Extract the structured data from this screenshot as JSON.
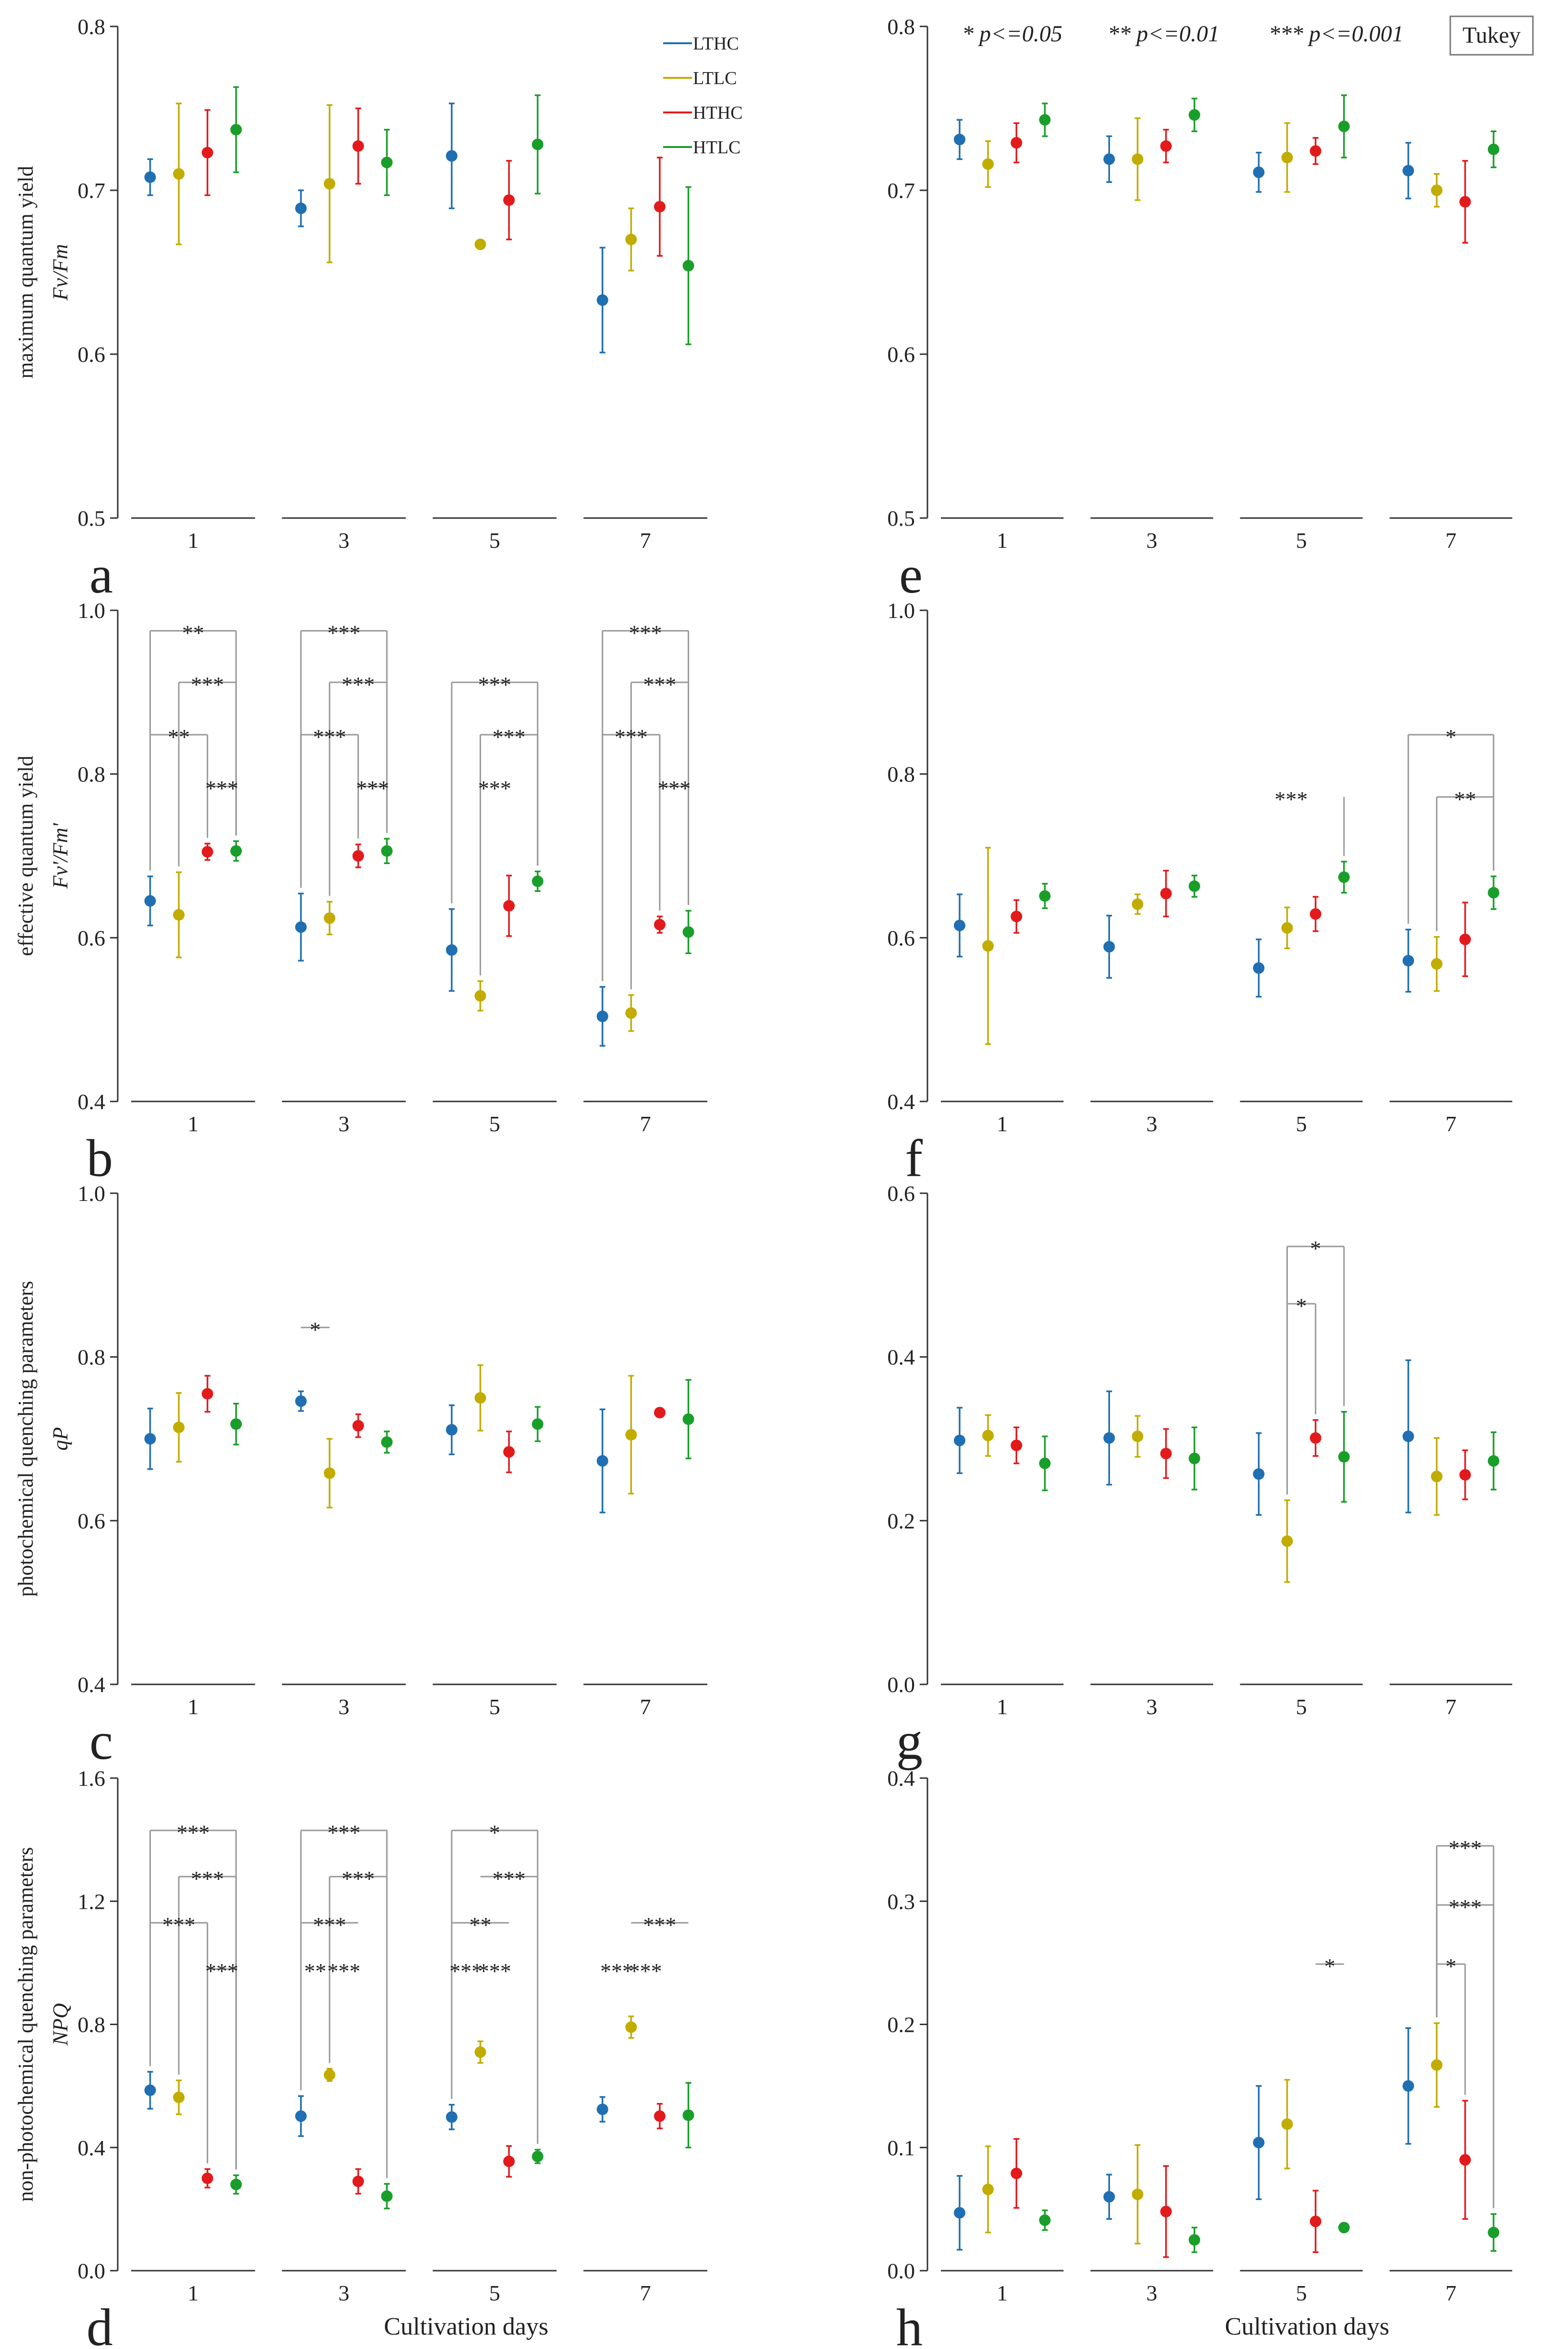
{
  "figure": {
    "x_axis_title": "Cultivation days",
    "significance_note": {
      "p1": "* p<=0.05",
      "p2": "** p<=0.01",
      "p3": "*** p<=0.001",
      "test": "Tukey"
    }
  },
  "colors": {
    "LTHC": "#1f6fb2",
    "LTLC": "#c2ac00",
    "HTHC": "#e31a1c",
    "HTLC": "#1a9e2a"
  },
  "chart_data": [
    {
      "id": "a",
      "type": "scatter",
      "letter": "a",
      "ylabel_line1": "maximum quantum yield",
      "ylabel_line2": "Fv/Fm",
      "ylim": [
        0.5,
        0.8
      ],
      "yticks": [
        "0.5",
        "0.6",
        "0.7",
        "0.8"
      ],
      "categories": [
        "1",
        "3",
        "5",
        "7"
      ],
      "legend": [
        "LTHC",
        "LTLC",
        "HTHC",
        "HTLC"
      ],
      "series": [
        {
          "name": "LTHC",
          "values": [
            0.708,
            0.689,
            0.721,
            0.633
          ],
          "err": [
            0.011,
            0.011,
            0.032,
            0.032
          ]
        },
        {
          "name": "LTLC",
          "values": [
            0.71,
            0.704,
            0.667,
            0.67
          ],
          "err": [
            0.043,
            0.048,
            0.0,
            0.019
          ]
        },
        {
          "name": "HTHC",
          "values": [
            0.723,
            0.727,
            0.694,
            0.69
          ],
          "err": [
            0.026,
            0.023,
            0.024,
            0.03
          ]
        },
        {
          "name": "HTLC",
          "values": [
            0.737,
            0.717,
            0.728,
            0.654
          ],
          "err": [
            0.026,
            0.02,
            0.03,
            0.048
          ]
        }
      ],
      "brackets": []
    },
    {
      "id": "b",
      "type": "scatter",
      "letter": "b",
      "ylabel_line1": "effective quantum yield",
      "ylabel_line2": "Fv'/Fm'",
      "ylim": [
        0.4,
        1.0
      ],
      "yticks": [
        "0.4",
        "0.6",
        "0.8",
        "1.0"
      ],
      "categories": [
        "1",
        "3",
        "5",
        "7"
      ],
      "series": [
        {
          "name": "LTHC",
          "values": [
            0.645,
            0.613,
            0.585,
            0.504
          ],
          "err": [
            0.03,
            0.041,
            0.05,
            0.036
          ]
        },
        {
          "name": "LTLC",
          "values": [
            0.628,
            0.624,
            0.529,
            0.508
          ],
          "err": [
            0.052,
            0.02,
            0.018,
            0.022
          ]
        },
        {
          "name": "HTHC",
          "values": [
            0.705,
            0.7,
            0.639,
            0.616
          ],
          "err": [
            0.01,
            0.014,
            0.037,
            0.01
          ]
        },
        {
          "name": "HTLC",
          "values": [
            0.706,
            0.706,
            0.669,
            0.607
          ],
          "err": [
            0.012,
            0.015,
            0.012,
            0.026
          ]
        }
      ],
      "brackets": [
        {
          "g": 0,
          "a": 0,
          "b": 3,
          "y": 0.975,
          "label": "**"
        },
        {
          "g": 0,
          "a": 1,
          "b": 3,
          "y": 0.912,
          "label": "***"
        },
        {
          "g": 0,
          "a": 0,
          "b": 2,
          "y": 0.848,
          "label": "**"
        },
        {
          "g": 0,
          "a": 2,
          "b": 3,
          "y": 0.785,
          "label": "***",
          "form": "drop"
        },
        {
          "g": 1,
          "a": 0,
          "b": 3,
          "y": 0.975,
          "label": "***"
        },
        {
          "g": 1,
          "a": 1,
          "b": 3,
          "y": 0.912,
          "label": "***"
        },
        {
          "g": 1,
          "a": 0,
          "b": 2,
          "y": 0.848,
          "label": "***"
        },
        {
          "g": 1,
          "a": 2,
          "b": 3,
          "y": 0.785,
          "label": "***",
          "form": "drop"
        },
        {
          "g": 2,
          "a": 0,
          "b": 3,
          "y": 0.912,
          "label": "***"
        },
        {
          "g": 2,
          "a": 1,
          "b": 3,
          "y": 0.848,
          "label": "***"
        },
        {
          "g": 2,
          "a": 1,
          "b": 2,
          "y": 0.785,
          "label": "***",
          "form": "none"
        },
        {
          "g": 3,
          "a": 0,
          "b": 3,
          "y": 0.975,
          "label": "***"
        },
        {
          "g": 3,
          "a": 1,
          "b": 3,
          "y": 0.912,
          "label": "***"
        },
        {
          "g": 3,
          "a": 0,
          "b": 2,
          "y": 0.848,
          "label": "***"
        },
        {
          "g": 3,
          "a": 2,
          "b": 3,
          "y": 0.785,
          "label": "***",
          "form": "drop"
        }
      ]
    },
    {
      "id": "c",
      "type": "scatter",
      "letter": "c",
      "ylabel_line1": "photochemical quenching parameters",
      "ylabel_line2": "qP",
      "ylim": [
        0.4,
        1.0
      ],
      "yticks": [
        "0.4",
        "0.6",
        "0.8",
        "1.0"
      ],
      "categories": [
        "1",
        "3",
        "5",
        "7"
      ],
      "series": [
        {
          "name": "LTHC",
          "values": [
            0.7,
            0.746,
            0.711,
            0.673
          ],
          "err": [
            0.037,
            0.012,
            0.03,
            0.063
          ]
        },
        {
          "name": "LTLC",
          "values": [
            0.714,
            0.658,
            0.75,
            0.705
          ],
          "err": [
            0.042,
            0.042,
            0.04,
            0.072
          ]
        },
        {
          "name": "HTHC",
          "values": [
            0.755,
            0.716,
            0.684,
            0.732
          ],
          "err": [
            0.022,
            0.014,
            0.025,
            0.0
          ]
        },
        {
          "name": "HTLC",
          "values": [
            0.718,
            0.696,
            0.718,
            0.724
          ],
          "err": [
            0.025,
            0.013,
            0.021,
            0.048
          ]
        }
      ],
      "brackets": [
        {
          "g": 1,
          "a": 0,
          "b": 1,
          "y": 0.836,
          "label": "*",
          "form": "flat"
        }
      ]
    },
    {
      "id": "d",
      "type": "scatter",
      "letter": "d",
      "ylabel_line1": "non-photochemical quenching parameters",
      "ylabel_line2": "NPQ",
      "ylim": [
        0.0,
        1.6
      ],
      "yticks": [
        "0.0",
        "0.4",
        "0.8",
        "1.2",
        "1.6"
      ],
      "categories": [
        "1",
        "3",
        "5",
        "7"
      ],
      "series": [
        {
          "name": "LTHC",
          "values": [
            0.586,
            0.502,
            0.499,
            0.524
          ],
          "err": [
            0.06,
            0.065,
            0.04,
            0.04
          ]
        },
        {
          "name": "LTLC",
          "values": [
            0.563,
            0.636,
            0.71,
            0.791
          ],
          "err": [
            0.055,
            0.02,
            0.035,
            0.035
          ]
        },
        {
          "name": "HTHC",
          "values": [
            0.3,
            0.29,
            0.355,
            0.502
          ],
          "err": [
            0.03,
            0.04,
            0.05,
            0.04
          ]
        },
        {
          "name": "HTLC",
          "values": [
            0.28,
            0.242,
            0.371,
            0.505
          ],
          "err": [
            0.03,
            0.04,
            0.022,
            0.105
          ]
        }
      ],
      "brackets": [
        {
          "g": 0,
          "a": 0,
          "b": 3,
          "y": 1.43,
          "label": "***"
        },
        {
          "g": 0,
          "a": 1,
          "b": 3,
          "y": 1.28,
          "label": "***"
        },
        {
          "g": 0,
          "a": 0,
          "b": 2,
          "y": 1.13,
          "label": "***"
        },
        {
          "g": 0,
          "a": 2,
          "b": 3,
          "y": 0.98,
          "label": "***",
          "form": "drop"
        },
        {
          "g": 1,
          "a": 0,
          "b": 3,
          "y": 1.43,
          "label": "***"
        },
        {
          "g": 1,
          "a": 1,
          "b": 3,
          "y": 1.28,
          "label": "***"
        },
        {
          "g": 1,
          "a": 0,
          "b": 2,
          "y": 1.13,
          "label": "***",
          "form": "flat"
        },
        {
          "g": 1,
          "a": 0,
          "b": 1,
          "y": 0.98,
          "label": "**",
          "form": "none"
        },
        {
          "g": 1,
          "a": 1,
          "b": 2,
          "y": 0.98,
          "label": "***",
          "form": "none"
        },
        {
          "g": 2,
          "a": 0,
          "b": 3,
          "y": 1.43,
          "label": "*"
        },
        {
          "g": 2,
          "a": 1,
          "b": 3,
          "y": 1.28,
          "label": "***",
          "form": "flat"
        },
        {
          "g": 2,
          "a": 0,
          "b": 2,
          "y": 1.13,
          "label": "**",
          "form": "flat"
        },
        {
          "g": 2,
          "a": 0,
          "b": 1,
          "y": 0.98,
          "label": "***",
          "form": "none"
        },
        {
          "g": 2,
          "a": 1,
          "b": 2,
          "y": 0.98,
          "label": "***",
          "form": "none"
        },
        {
          "g": 3,
          "a": 1,
          "b": 3,
          "y": 1.13,
          "label": "***",
          "form": "flat"
        },
        {
          "g": 3,
          "a": 0,
          "b": 1,
          "y": 0.98,
          "label": "***",
          "form": "none"
        },
        {
          "g": 3,
          "a": 1,
          "b": 2,
          "y": 0.98,
          "label": "***",
          "form": "none"
        }
      ]
    },
    {
      "id": "e",
      "type": "scatter",
      "letter": "e",
      "ylabel_line1": "",
      "ylabel_line2": "",
      "ylim": [
        0.5,
        0.8
      ],
      "yticks": [
        "0.5",
        "0.6",
        "0.7",
        "0.8"
      ],
      "categories": [
        "1",
        "3",
        "5",
        "7"
      ],
      "series": [
        {
          "name": "LTHC",
          "values": [
            0.731,
            0.719,
            0.711,
            0.712
          ],
          "err": [
            0.012,
            0.014,
            0.012,
            0.017
          ]
        },
        {
          "name": "LTLC",
          "values": [
            0.716,
            0.719,
            0.72,
            0.7
          ],
          "err": [
            0.014,
            0.025,
            0.021,
            0.01
          ]
        },
        {
          "name": "HTHC",
          "values": [
            0.729,
            0.727,
            0.724,
            0.693
          ],
          "err": [
            0.012,
            0.01,
            0.008,
            0.025
          ]
        },
        {
          "name": "HTLC",
          "values": [
            0.743,
            0.746,
            0.739,
            0.725
          ],
          "err": [
            0.01,
            0.01,
            0.019,
            0.011
          ]
        }
      ],
      "brackets": []
    },
    {
      "id": "f",
      "type": "scatter",
      "letter": "f",
      "ylabel_line1": "",
      "ylabel_line2": "",
      "ylim": [
        0.4,
        1.0
      ],
      "yticks": [
        "0.4",
        "0.6",
        "0.8",
        "1.0"
      ],
      "categories": [
        "1",
        "3",
        "5",
        "7"
      ],
      "series": [
        {
          "name": "LTHC",
          "values": [
            0.615,
            0.589,
            0.563,
            0.572
          ],
          "err": [
            0.038,
            0.038,
            0.035,
            0.038
          ]
        },
        {
          "name": "LTLC",
          "values": [
            0.59,
            0.641,
            0.612,
            0.568
          ],
          "err": [
            0.12,
            0.012,
            0.025,
            0.033
          ]
        },
        {
          "name": "HTHC",
          "values": [
            0.626,
            0.654,
            0.629,
            0.598
          ],
          "err": [
            0.02,
            0.028,
            0.021,
            0.045
          ]
        },
        {
          "name": "HTLC",
          "values": [
            0.651,
            0.663,
            0.674,
            0.655
          ],
          "err": [
            0.015,
            0.013,
            0.019,
            0.02
          ]
        }
      ],
      "brackets": [
        {
          "g": 2,
          "a": 1,
          "b": 3,
          "y": 0.772,
          "label": "***",
          "form": "rightonly"
        },
        {
          "g": 3,
          "a": 0,
          "b": 3,
          "y": 0.848,
          "label": "*"
        },
        {
          "g": 3,
          "a": 1,
          "b": 3,
          "y": 0.772,
          "label": "**"
        }
      ]
    },
    {
      "id": "g",
      "type": "scatter",
      "letter": "g",
      "ylabel_line1": "",
      "ylabel_line2": "",
      "ylim": [
        0.0,
        0.6
      ],
      "yticks": [
        "0.0",
        "0.2",
        "0.4",
        "0.6"
      ],
      "categories": [
        "1",
        "3",
        "5",
        "7"
      ],
      "series": [
        {
          "name": "LTHC",
          "values": [
            0.298,
            0.301,
            0.257,
            0.303
          ],
          "err": [
            0.04,
            0.057,
            0.05,
            0.093
          ]
        },
        {
          "name": "LTLC",
          "values": [
            0.304,
            0.303,
            0.175,
            0.254
          ],
          "err": [
            0.025,
            0.025,
            0.05,
            0.047
          ]
        },
        {
          "name": "HTHC",
          "values": [
            0.292,
            0.282,
            0.301,
            0.256
          ],
          "err": [
            0.022,
            0.03,
            0.022,
            0.03
          ]
        },
        {
          "name": "HTLC",
          "values": [
            0.27,
            0.276,
            0.278,
            0.273
          ],
          "err": [
            0.033,
            0.038,
            0.055,
            0.035
          ]
        }
      ],
      "brackets": [
        {
          "g": 2,
          "a": 1,
          "b": 3,
          "y": 0.535,
          "label": "*"
        },
        {
          "g": 2,
          "a": 1,
          "b": 2,
          "y": 0.465,
          "label": "*"
        }
      ]
    },
    {
      "id": "h",
      "type": "scatter",
      "letter": "h",
      "ylabel_line1": "",
      "ylabel_line2": "",
      "ylim": [
        0.0,
        0.4
      ],
      "yticks": [
        "0.0",
        "0.1",
        "0.2",
        "0.3",
        "0.4"
      ],
      "categories": [
        "1",
        "3",
        "5",
        "7"
      ],
      "series": [
        {
          "name": "LTHC",
          "values": [
            0.047,
            0.06,
            0.104,
            0.15
          ],
          "err": [
            0.03,
            0.018,
            0.046,
            0.047
          ]
        },
        {
          "name": "LTLC",
          "values": [
            0.066,
            0.062,
            0.119,
            0.167
          ],
          "err": [
            0.035,
            0.04,
            0.036,
            0.034
          ]
        },
        {
          "name": "HTHC",
          "values": [
            0.079,
            0.048,
            0.04,
            0.09
          ],
          "err": [
            0.028,
            0.037,
            0.025,
            0.048
          ]
        },
        {
          "name": "HTLC",
          "values": [
            0.041,
            0.025,
            0.035,
            0.031
          ],
          "err": [
            0.008,
            0.01,
            0.0,
            0.015
          ]
        }
      ],
      "brackets": [
        {
          "g": 2,
          "a": 2,
          "b": 3,
          "y": 0.249,
          "label": "*",
          "form": "flat"
        },
        {
          "g": 3,
          "a": 1,
          "b": 3,
          "y": 0.345,
          "label": "***"
        },
        {
          "g": 3,
          "a": 1,
          "b": 3,
          "y": 0.297,
          "label": "***"
        },
        {
          "g": 3,
          "a": 1,
          "b": 2,
          "y": 0.249,
          "label": "*"
        }
      ]
    }
  ]
}
